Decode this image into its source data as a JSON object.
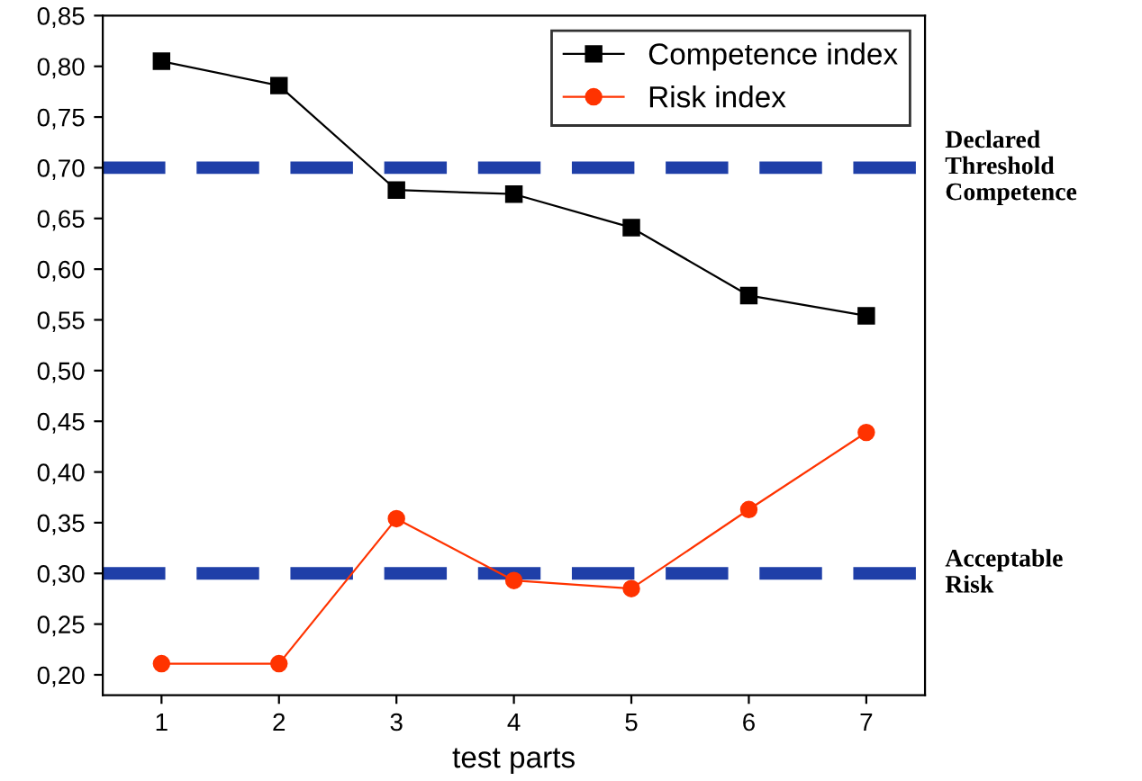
{
  "chart_data": {
    "type": "line",
    "xlabel": "test parts",
    "x": [
      1,
      2,
      3,
      4,
      5,
      6,
      7
    ],
    "series": [
      {
        "name": "Competence index",
        "color": "#000000",
        "values": [
          0.805,
          0.781,
          0.678,
          0.674,
          0.641,
          0.574,
          0.554
        ],
        "marker": "square"
      },
      {
        "name": "Risk index",
        "color": "#ff3300",
        "values": [
          0.211,
          0.211,
          0.354,
          0.293,
          0.285,
          0.363,
          0.439
        ],
        "marker": "circle"
      }
    ],
    "xlim": [
      0.5,
      7.5
    ],
    "xticks": [
      1,
      2,
      3,
      4,
      5,
      6,
      7
    ],
    "ylim": [
      0.18,
      0.85
    ],
    "yticks": [
      {
        "value": 0.2,
        "label": "0,20"
      },
      {
        "value": 0.25,
        "label": "0,25"
      },
      {
        "value": 0.3,
        "label": "0,30"
      },
      {
        "value": 0.35,
        "label": "0,35"
      },
      {
        "value": 0.4,
        "label": "0,40"
      },
      {
        "value": 0.45,
        "label": "0,45"
      },
      {
        "value": 0.5,
        "label": "0,50"
      },
      {
        "value": 0.55,
        "label": "0,55"
      },
      {
        "value": 0.6,
        "label": "0,60"
      },
      {
        "value": 0.65,
        "label": "0,65"
      },
      {
        "value": 0.7,
        "label": "0,70"
      },
      {
        "value": 0.75,
        "label": "0,75"
      },
      {
        "value": 0.8,
        "label": "0,80"
      },
      {
        "value": 0.85,
        "label": "0,85"
      }
    ],
    "ref_lines": [
      {
        "axis": "y",
        "value": 0.7,
        "label": "Declared\nThreshold\nCompetence",
        "color": "#1f3fa8",
        "line_style": "dashed"
      },
      {
        "axis": "y",
        "value": 0.3,
        "label": "Acceptable\nRisk",
        "color": "#1f3fa8",
        "line_style": "dashed"
      }
    ],
    "legend": "top right",
    "grid": false,
    "line_style": "solid"
  }
}
